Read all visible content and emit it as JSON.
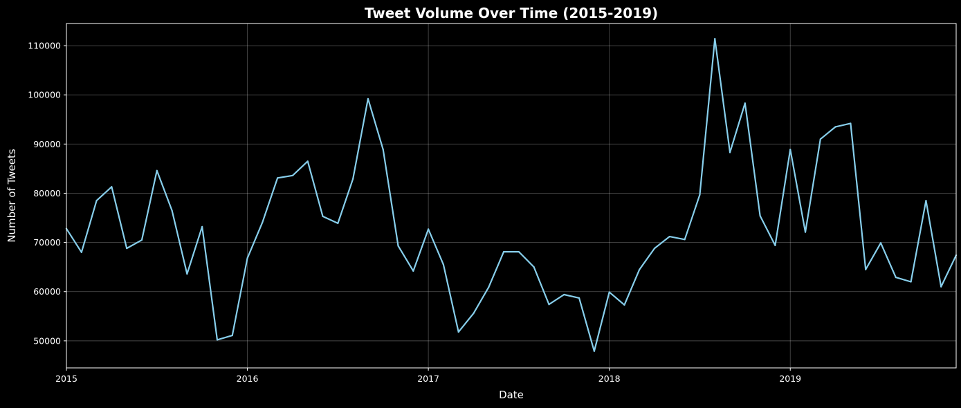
{
  "chart_data": {
    "type": "line",
    "title": "Tweet Volume Over Time (2015-2019)",
    "xlabel": "Date",
    "ylabel": "Number of Tweets",
    "x_tick_labels": [
      "2015",
      "2016",
      "2017",
      "2018",
      "2019"
    ],
    "y_tick_labels": [
      "50000",
      "60000",
      "70000",
      "80000",
      "90000",
      "100000",
      "110000"
    ],
    "ylim": [
      44500,
      114500
    ],
    "xlim": [
      "2015-01",
      "2019-12"
    ],
    "grid": true,
    "line_color": "#87ceeb",
    "background_color": "#000000",
    "series": [
      {
        "x": [
          "2015-01",
          "2015-02",
          "2015-03",
          "2015-04",
          "2015-05",
          "2015-06",
          "2015-07",
          "2015-08",
          "2015-09",
          "2015-10",
          "2015-11",
          "2015-12",
          "2016-01",
          "2016-02",
          "2016-03",
          "2016-04",
          "2016-05",
          "2016-06",
          "2016-07",
          "2016-08",
          "2016-09",
          "2016-10",
          "2016-11",
          "2016-12",
          "2017-01",
          "2017-02",
          "2017-03",
          "2017-04",
          "2017-05",
          "2017-06",
          "2017-07",
          "2017-08",
          "2017-09",
          "2017-10",
          "2017-11",
          "2017-12",
          "2018-01",
          "2018-02",
          "2018-03",
          "2018-04",
          "2018-05",
          "2018-06",
          "2018-07",
          "2018-08",
          "2018-09",
          "2018-10",
          "2018-11",
          "2018-12",
          "2019-01",
          "2019-02",
          "2019-03",
          "2019-04",
          "2019-05",
          "2019-06",
          "2019-07",
          "2019-08",
          "2019-09",
          "2019-10",
          "2019-11",
          "2019-12"
        ],
        "values": [
          72800,
          68000,
          78500,
          81300,
          68800,
          70500,
          84600,
          76500,
          63600,
          73200,
          50200,
          51100,
          66800,
          74100,
          83100,
          83600,
          86500,
          75300,
          73900,
          82900,
          99200,
          88900,
          69300,
          64200,
          72700,
          65500,
          51800,
          55600,
          60900,
          68100,
          68100,
          65000,
          57400,
          59400,
          58700,
          47900,
          59900,
          57300,
          64500,
          68800,
          71200,
          70600,
          79700,
          111400,
          88300,
          98300,
          75400,
          69400,
          88900,
          72100,
          91000,
          93500,
          94200,
          64500,
          69900,
          62900,
          62000,
          78500,
          61000,
          67400
        ]
      }
    ]
  }
}
